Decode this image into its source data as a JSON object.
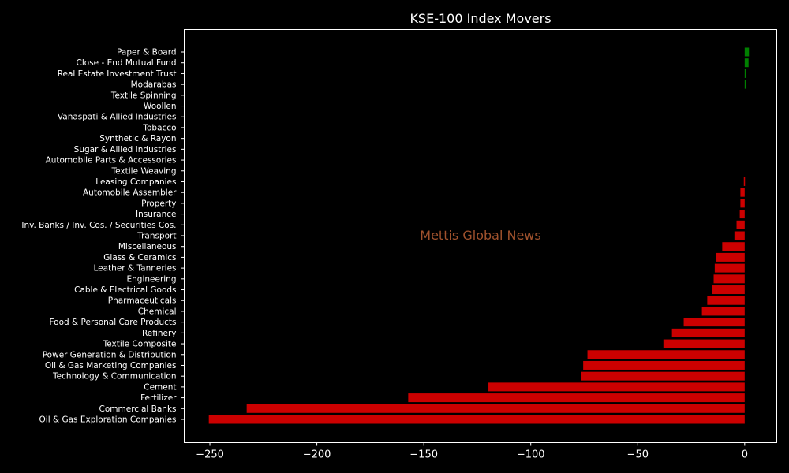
{
  "chart_data": {
    "type": "bar",
    "orientation": "horizontal",
    "title": "KSE-100 Index Movers",
    "watermark": "Mettis Global News",
    "categories": [
      "Oil & Gas Exploration Companies",
      "Commercial Banks",
      "Fertilizer",
      "Cement",
      "Technology & Communication",
      "Oil & Gas Marketing Companies",
      "Power Generation & Distribution",
      "Textile Composite",
      "Refinery",
      "Food & Personal Care Products",
      "Chemical",
      "Pharmaceuticals",
      "Cable & Electrical Goods",
      "Engineering",
      "Leather & Tanneries",
      "Glass & Ceramics",
      "Miscellaneous",
      "Transport",
      "Inv. Banks / Inv. Cos. / Securities Cos.",
      "Insurance",
      "Property",
      "Automobile Assembler",
      "Leasing Companies",
      "Textile Weaving",
      "Automobile Parts & Accessories",
      "Sugar & Allied Industries",
      "Synthetic & Rayon",
      "Tobacco",
      "Vanaspati & Allied Industries",
      "Woollen",
      "Textile Spinning",
      "Modarabas",
      "Real Estate Investment Trust",
      "Close - End Mutual Fund",
      "Paper & Board"
    ],
    "values": [
      -250.5,
      -232.8,
      -157.3,
      -119.8,
      -76.3,
      -75.5,
      -73.5,
      -38.0,
      -34.0,
      -28.5,
      -20.0,
      -17.5,
      -15.3,
      -14.5,
      -14.0,
      -13.5,
      -10.5,
      -4.8,
      -3.8,
      -2.3,
      -2.0,
      -2.0,
      -0.4,
      0,
      0,
      0,
      0,
      0,
      0,
      0,
      0,
      0.3,
      0.3,
      1.8,
      2.0
    ],
    "xlim": [
      -262,
      15
    ],
    "xticks": [
      -250,
      -200,
      -150,
      -100,
      -50,
      0
    ],
    "xtick_labels": [
      "−250",
      "−200",
      "−150",
      "−100",
      "−50",
      "0"
    ],
    "colors": {
      "positive": "#008000",
      "negative": "#cc0000",
      "background": "#000000",
      "axes": "#ffffff"
    },
    "grid": false
  }
}
